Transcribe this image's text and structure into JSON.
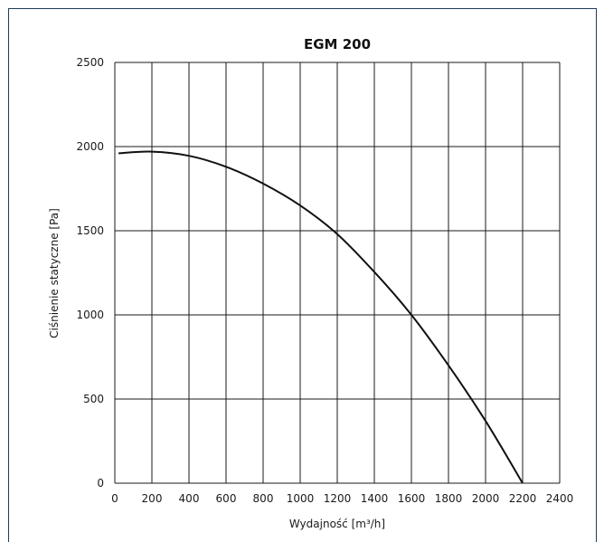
{
  "chart_data": {
    "type": "line",
    "title": "EGM 200",
    "xlabel": "Wydajność [m³/h]",
    "ylabel": "Ciśnienie statyczne [Pa]",
    "xlim": [
      0,
      2400
    ],
    "ylim": [
      0,
      2500
    ],
    "x_ticks": [
      0,
      200,
      400,
      600,
      800,
      1000,
      1200,
      1400,
      1600,
      1800,
      2000,
      2200,
      2400
    ],
    "y_ticks": [
      0,
      500,
      1000,
      1500,
      2000,
      2500
    ],
    "grid": true,
    "series": [
      {
        "x": [
          20,
          200,
          400,
          600,
          800,
          1000,
          1200,
          1400,
          1600,
          1800,
          2000,
          2200
        ],
        "y": [
          1960,
          1970,
          1945,
          1880,
          1780,
          1650,
          1480,
          1255,
          1000,
          700,
          370,
          0
        ]
      }
    ]
  }
}
